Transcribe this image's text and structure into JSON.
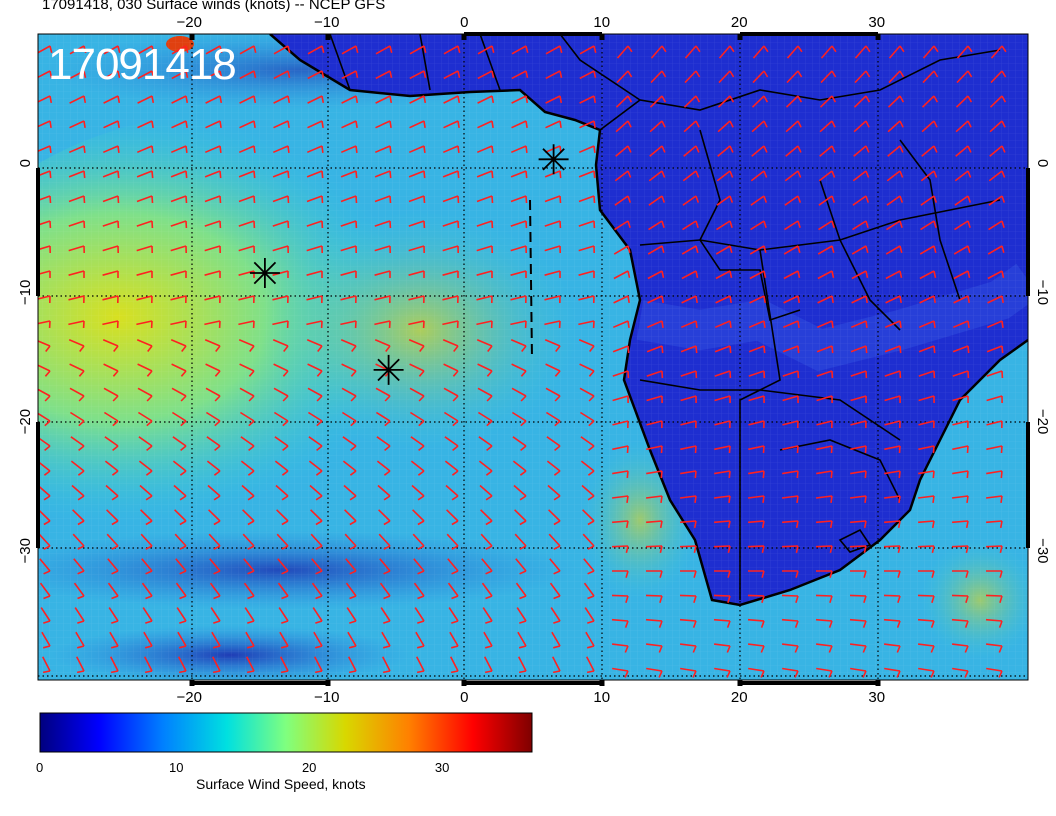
{
  "title": "17091418, 030 Surface winds (knots) -- NCEP GFS",
  "stamp": "17091418",
  "map": {
    "lon_ticks": [
      -20,
      -10,
      0,
      10,
      20,
      30
    ],
    "lat_ticks": [
      0,
      -10,
      -20,
      -30
    ],
    "lon_range": [
      -31,
      41
    ],
    "lat_range": [
      -40,
      10
    ],
    "grid": true,
    "barb_color": "#ff2020",
    "coast_color": "#000000"
  },
  "markers": [
    {
      "name": "star-marker",
      "lon": -14.5,
      "lat": -8.5
    },
    {
      "name": "star-marker",
      "lon": -5.5,
      "lat": -16
    },
    {
      "name": "star-marker",
      "lon": 6.5,
      "lat": 0.3
    }
  ],
  "colorbar": {
    "label": "Surface Wind Speed, knots",
    "ticks": [
      0,
      10,
      20,
      30
    ],
    "range": [
      0,
      37
    ],
    "colors": [
      "#00007f",
      "#0000ff",
      "#0080ff",
      "#00e0e0",
      "#7fff7f",
      "#d0d000",
      "#ff8000",
      "#ff0000",
      "#7f0000"
    ]
  }
}
